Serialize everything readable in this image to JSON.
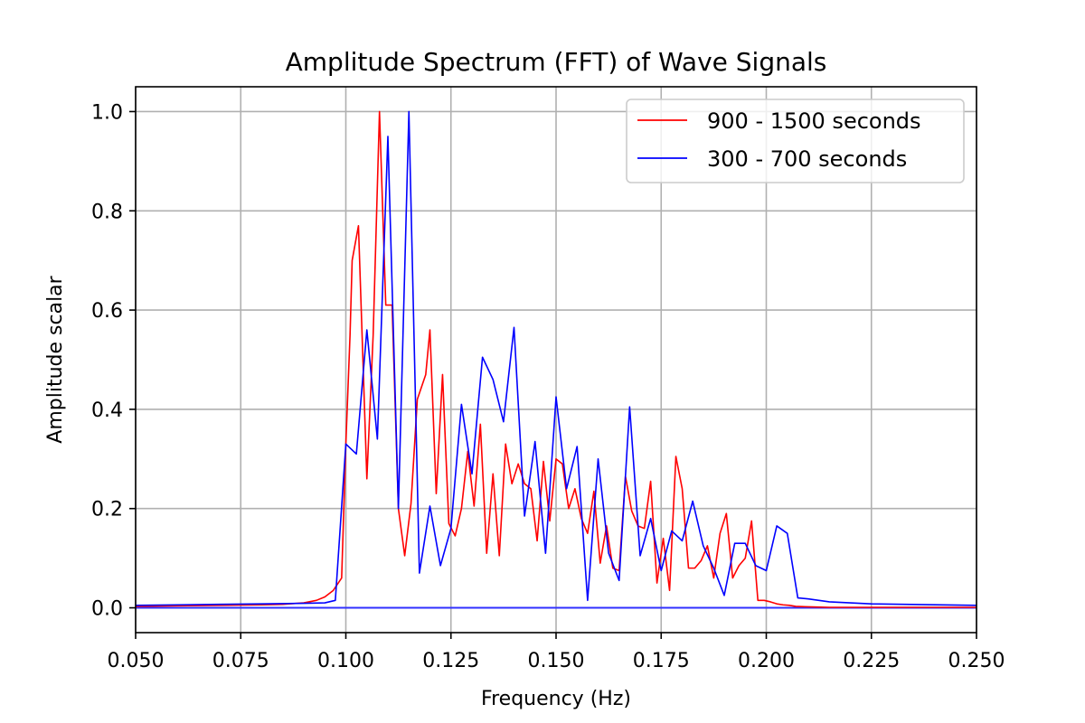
{
  "chart_data": {
    "type": "line",
    "title": "Amplitude Spectrum (FFT) of Wave Signals",
    "xlabel": "Frequency (Hz)",
    "ylabel": "Amplitude scalar",
    "xlim": [
      0.05,
      0.25
    ],
    "ylim": [
      -0.05,
      1.05
    ],
    "xticks": [
      0.05,
      0.075,
      0.1,
      0.125,
      0.15,
      0.175,
      0.2,
      0.225,
      0.25
    ],
    "xtick_labels": [
      "0.050",
      "0.075",
      "0.100",
      "0.125",
      "0.150",
      "0.175",
      "0.200",
      "0.225",
      "0.250"
    ],
    "yticks": [
      0.0,
      0.2,
      0.4,
      0.6,
      0.8,
      1.0
    ],
    "ytick_labels": [
      "0.0",
      "0.2",
      "0.4",
      "0.6",
      "0.8",
      "1.0"
    ],
    "grid": true,
    "legend_position": "top-right",
    "series": [
      {
        "name": "900 - 1500 seconds",
        "color": "#ff0000",
        "x": [
          0.05,
          0.06,
          0.07,
          0.08,
          0.085,
          0.09,
          0.093,
          0.095,
          0.097,
          0.099,
          0.1,
          0.101,
          0.1015,
          0.103,
          0.105,
          0.1065,
          0.108,
          0.1095,
          0.111,
          0.1125,
          0.114,
          0.1155,
          0.117,
          0.119,
          0.12,
          0.1215,
          0.123,
          0.1245,
          0.126,
          0.1275,
          0.129,
          0.1305,
          0.132,
          0.1335,
          0.135,
          0.1365,
          0.138,
          0.1395,
          0.141,
          0.1425,
          0.144,
          0.1455,
          0.147,
          0.1485,
          0.15,
          0.1515,
          0.153,
          0.1545,
          0.156,
          0.1575,
          0.159,
          0.1605,
          0.162,
          0.1635,
          0.165,
          0.1665,
          0.168,
          0.1695,
          0.171,
          0.1725,
          0.174,
          0.1755,
          0.177,
          0.1785,
          0.18,
          0.1815,
          0.183,
          0.1845,
          0.186,
          0.1875,
          0.189,
          0.1905,
          0.192,
          0.1935,
          0.195,
          0.1965,
          0.198,
          0.1995,
          0.201,
          0.2025,
          0.204,
          0.2055,
          0.207,
          0.21,
          0.215,
          0.225,
          0.25
        ],
        "y": [
          0.003,
          0.004,
          0.005,
          0.006,
          0.007,
          0.01,
          0.015,
          0.022,
          0.035,
          0.06,
          0.33,
          0.55,
          0.7,
          0.77,
          0.26,
          0.55,
          1.0,
          0.61,
          0.61,
          0.2,
          0.105,
          0.21,
          0.42,
          0.47,
          0.56,
          0.23,
          0.47,
          0.17,
          0.145,
          0.2,
          0.315,
          0.205,
          0.37,
          0.11,
          0.27,
          0.105,
          0.33,
          0.25,
          0.29,
          0.25,
          0.24,
          0.135,
          0.295,
          0.175,
          0.3,
          0.29,
          0.2,
          0.24,
          0.18,
          0.15,
          0.235,
          0.09,
          0.165,
          0.08,
          0.075,
          0.265,
          0.195,
          0.165,
          0.16,
          0.255,
          0.05,
          0.14,
          0.035,
          0.305,
          0.24,
          0.08,
          0.08,
          0.095,
          0.125,
          0.06,
          0.15,
          0.19,
          0.06,
          0.085,
          0.1,
          0.175,
          0.015,
          0.015,
          0.012,
          0.008,
          0.006,
          0.005,
          0.003,
          0.002,
          0.001,
          0.001,
          0.001
        ]
      },
      {
        "name": "300 - 700 seconds",
        "color": "#0000ff",
        "x": [
          0.05,
          0.06,
          0.07,
          0.08,
          0.09,
          0.095,
          0.0975,
          0.1,
          0.1025,
          0.105,
          0.1075,
          0.11,
          0.1125,
          0.115,
          0.1175,
          0.12,
          0.1225,
          0.125,
          0.1275,
          0.13,
          0.1325,
          0.135,
          0.1375,
          0.14,
          0.1425,
          0.145,
          0.1475,
          0.15,
          0.1525,
          0.155,
          0.1575,
          0.16,
          0.1625,
          0.165,
          0.1675,
          0.17,
          0.1725,
          0.175,
          0.1775,
          0.18,
          0.1825,
          0.185,
          0.1875,
          0.19,
          0.1925,
          0.195,
          0.1975,
          0.2,
          0.2025,
          0.205,
          0.2075,
          0.21,
          0.215,
          0.225,
          0.25
        ],
        "y": [
          0.005,
          0.006,
          0.007,
          0.008,
          0.009,
          0.01,
          0.015,
          0.33,
          0.31,
          0.56,
          0.34,
          0.95,
          0.2,
          1.0,
          0.07,
          0.205,
          0.085,
          0.16,
          0.41,
          0.27,
          0.505,
          0.46,
          0.375,
          0.565,
          0.185,
          0.335,
          0.11,
          0.425,
          0.24,
          0.325,
          0.015,
          0.3,
          0.11,
          0.055,
          0.405,
          0.105,
          0.18,
          0.075,
          0.155,
          0.135,
          0.215,
          0.125,
          0.08,
          0.025,
          0.13,
          0.13,
          0.085,
          0.075,
          0.165,
          0.15,
          0.02,
          0.018,
          0.012,
          0.008,
          0.005
        ]
      }
    ]
  }
}
